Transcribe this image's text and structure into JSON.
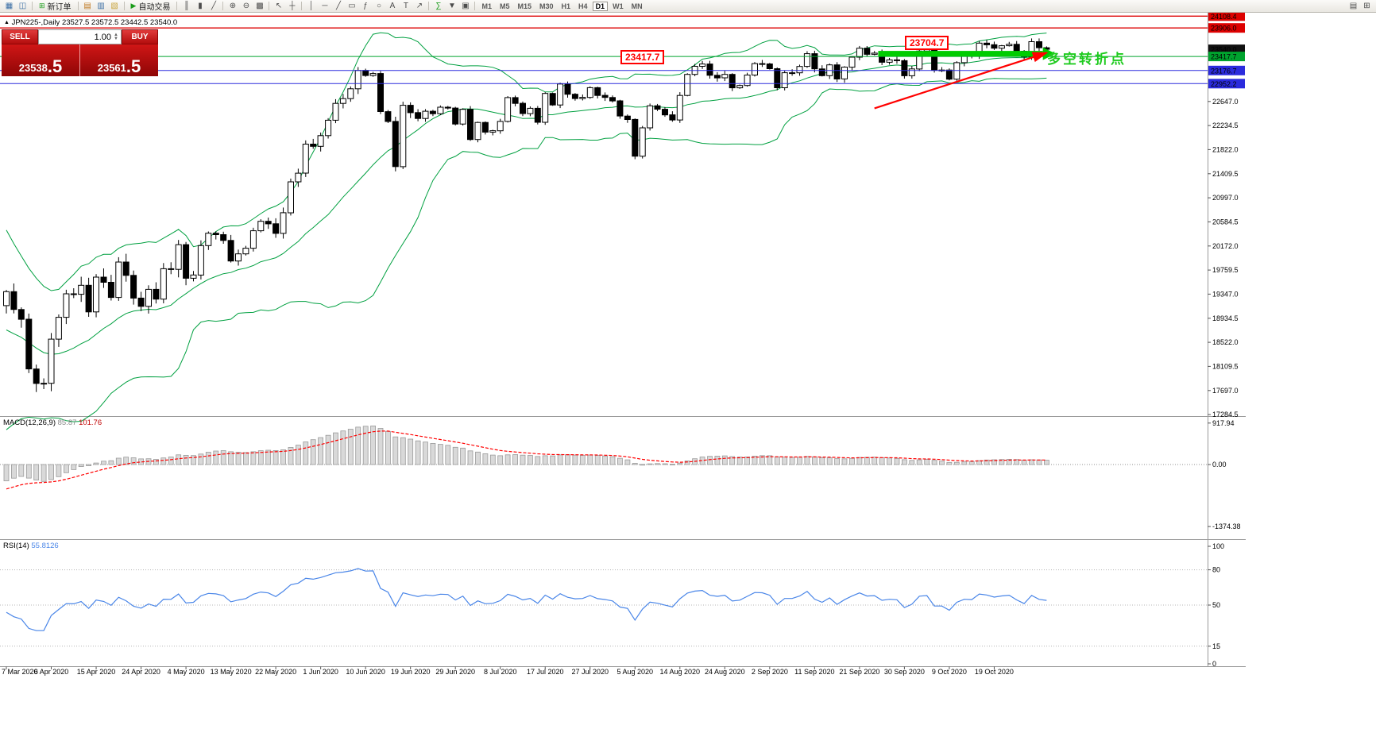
{
  "toolbar": {
    "new_order_label": "新订单",
    "autotrading_label": "自动交易",
    "timeframes": [
      "M1",
      "M5",
      "M15",
      "M30",
      "H1",
      "H4",
      "D1",
      "W1",
      "MN"
    ],
    "active_timeframe": "D1",
    "items": [
      {
        "type": "icon",
        "name": "new-chart-icon",
        "glyph": "▦",
        "color": "#3a6ea5"
      },
      {
        "type": "icon",
        "name": "profiles-icon",
        "glyph": "◫",
        "color": "#3a6ea5"
      },
      {
        "type": "sep"
      },
      {
        "type": "button",
        "name": "new-order-button",
        "glyph": "⊞",
        "label": "新订单",
        "color": "#1a9c1a"
      },
      {
        "type": "sep"
      },
      {
        "type": "icon",
        "name": "market-watch-icon",
        "glyph": "▤",
        "color": "#c07820"
      },
      {
        "type": "icon",
        "name": "data-window-icon",
        "glyph": "▥",
        "color": "#3a6ea5"
      },
      {
        "type": "icon",
        "name": "navigator-icon",
        "glyph": "▧",
        "color": "#caa53d"
      },
      {
        "type": "sep"
      },
      {
        "type": "button",
        "name": "auto-trading-button",
        "glyph": "▶",
        "label": "自动交易",
        "color": "#1a9c1a"
      },
      {
        "type": "sep"
      },
      {
        "type": "icon",
        "name": "bar-chart-icon",
        "glyph": "║"
      },
      {
        "type": "icon",
        "name": "candlestick-chart-icon",
        "glyph": "▮"
      },
      {
        "type": "icon",
        "name": "line-chart-icon",
        "glyph": "╱"
      },
      {
        "type": "sep"
      },
      {
        "type": "icon",
        "name": "zoom-in-icon",
        "glyph": "⊕"
      },
      {
        "type": "icon",
        "name": "zoom-out-icon",
        "glyph": "⊖"
      },
      {
        "type": "icon",
        "name": "tile-windows-icon",
        "glyph": "▩"
      },
      {
        "type": "sep"
      },
      {
        "type": "icon",
        "name": "cursor-icon",
        "glyph": "↖"
      },
      {
        "type": "icon",
        "name": "crosshair-icon",
        "glyph": "┼"
      },
      {
        "type": "sep"
      },
      {
        "type": "icon",
        "name": "vertical-line-icon",
        "glyph": "│"
      },
      {
        "type": "icon",
        "name": "horizontal-line-icon",
        "glyph": "─"
      },
      {
        "type": "icon",
        "name": "trendline-icon",
        "glyph": "╱"
      },
      {
        "type": "icon",
        "name": "channel-icon",
        "glyph": "▭"
      },
      {
        "type": "icon",
        "name": "fibonacci-icon",
        "glyph": "ƒ"
      },
      {
        "type": "icon",
        "name": "ellipse-icon",
        "glyph": "○"
      },
      {
        "type": "icon",
        "name": "text-icon",
        "glyph": "A"
      },
      {
        "type": "icon",
        "name": "text-label-icon",
        "glyph": "T"
      },
      {
        "type": "icon",
        "name": "arrows-icon",
        "glyph": "↗"
      },
      {
        "type": "sep"
      },
      {
        "type": "icon",
        "name": "indicators-icon",
        "glyph": "∑",
        "color": "#1a9c1a"
      },
      {
        "type": "icon",
        "name": "periods-icon",
        "glyph": "▼"
      },
      {
        "type": "icon",
        "name": "templates-icon",
        "glyph": "▣"
      },
      {
        "type": "sep"
      },
      {
        "type": "timeframes"
      },
      {
        "type": "spacer"
      },
      {
        "type": "icon",
        "name": "docking-icon",
        "glyph": "▤"
      },
      {
        "type": "icon",
        "name": "arrange-icon",
        "glyph": "⊞"
      }
    ]
  },
  "chart": {
    "caption_symbol": "JPN225-,Daily",
    "caption_ohlc": "23527.5 23572.5 23442.5 23540.0"
  },
  "trade_panel": {
    "sell_label": "SELL",
    "buy_label": "BUY",
    "volume": "1.00",
    "sell_price_main": "23538",
    "sell_price_frac": ".5",
    "buy_price_main": "23561",
    "buy_price_frac": ".5"
  },
  "indicators": {
    "macd_label": "MACD(12,26,9)",
    "macd_value": "85.87",
    "macd_signal_value": "101.76",
    "rsi_label": "RSI(14)",
    "rsi_value": "55.8126"
  },
  "annotations": {
    "level_box_1": "23417.7",
    "level_box_2": "23704.7",
    "note_text": "多空转折点"
  },
  "chart_data": {
    "type": "candlestick",
    "symbol": "JPN225-",
    "timeframe": "Daily",
    "x_labels": [
      "7 Mar 2020",
      "6 Apr 2020",
      "15 Apr 2020",
      "24 Apr 2020",
      "4 May 2020",
      "13 May 2020",
      "22 May 2020",
      "1 Jun 2020",
      "10 Jun 2020",
      "19 Jun 2020",
      "29 Jun 2020",
      "8 Jul 2020",
      "17 Jul 2020",
      "27 Jul 2020",
      "5 Aug 2020",
      "14 Aug 2020",
      "24 Aug 2020",
      "2 Sep 2020",
      "11 Sep 2020",
      "21 Sep 2020",
      "30 Sep 2020",
      "9 Oct 2020",
      "19 Oct 2020"
    ],
    "x_label_candle_step": 6,
    "pre_closes": [
      20600,
      20400,
      20150,
      19900,
      19650,
      19400,
      19100,
      18800,
      18500,
      18250,
      18000,
      17800,
      17650,
      17550,
      17700,
      17900,
      18150,
      18450,
      18800,
      19150
    ],
    "closes": [
      19389,
      19084,
      18917,
      18065,
      17818,
      17820,
      18576,
      18950,
      19353,
      19345,
      19499,
      19043,
      19638,
      19550,
      19290,
      19897,
      19669,
      19280,
      19138,
      19429,
      19262,
      19783,
      19771,
      20194,
      19619,
      19675,
      20179,
      20391,
      20366,
      20267,
      19915,
      20037,
      20134,
      20433,
      20595,
      20552,
      20388,
      20741,
      21271,
      21419,
      21916,
      21878,
      22062,
      22326,
      22614,
      22696,
      22864,
      23178,
      23091,
      23125,
      22473,
      22305,
      21531,
      22582,
      22456,
      22355,
      22479,
      22437,
      22549,
      22534,
      22260,
      22512,
      21995,
      22288,
      22122,
      22146,
      22306,
      22714,
      22615,
      22439,
      22530,
      22291,
      22784,
      22587,
      22946,
      22770,
      22696,
      22717,
      22884,
      22751,
      22715,
      22657,
      22397,
      22339,
      21710,
      22195,
      22573,
      22514,
      22418,
      22330,
      22750,
      23110,
      23249,
      23289,
      23096,
      23051,
      23110,
      22880,
      22920,
      23100,
      23296,
      23290,
      23208,
      22882,
      23139,
      23138,
      23247,
      23465,
      23205,
      23089,
      23274,
      23032,
      23235,
      23406,
      23559,
      23454,
      23475,
      23319,
      23360,
      23346,
      23087,
      23204,
      23511,
      23539,
      23185,
      23185,
      23029,
      23312,
      23433,
      23422,
      23647,
      23619,
      23559,
      23601,
      23626,
      23507,
      23410,
      23671,
      23567,
      23540
    ],
    "y_axis_ticks": [
      22647.0,
      22234.5,
      21822.0,
      21409.5,
      20997.0,
      20584.5,
      20172.0,
      19759.5,
      19347.0,
      18934.5,
      18522.0,
      18109.5,
      17697.0,
      17284.5
    ],
    "y_axis_special": [
      {
        "text": "24108.4",
        "bg": "#dd0000"
      },
      {
        "text": "23906.0",
        "bg": "#dd0000"
      },
      {
        "text": "23540.0",
        "bg": "#111111"
      },
      {
        "text": "23417.7",
        "bg": "#00a32e"
      },
      {
        "text": "23176.7",
        "bg": "#2b2bdd"
      },
      {
        "text": "22952.2",
        "bg": "#2b2bdd"
      }
    ],
    "h_lines": [
      {
        "price": 24108.4,
        "color": "#dd0000",
        "w": 1.4
      },
      {
        "price": 23906.0,
        "color": "#dd0000",
        "w": 1.4
      },
      {
        "price": 23417.7,
        "color": "#00a32e",
        "w": 1
      },
      {
        "price": 23176.7,
        "color": "#2b2bdd",
        "w": 1
      },
      {
        "price": 22952.2,
        "color": "#2b2bdd",
        "w": 1
      }
    ],
    "macd_ticks": [
      "917.94",
      "0.00",
      "-1374.38"
    ],
    "rsi_ticks": [
      "100",
      "80",
      "50",
      "15",
      "0"
    ],
    "rsi_levels": [
      80,
      50,
      15
    ],
    "trend_arrow": {
      "from_i": 116,
      "from_p": 22530,
      "to_i": 139,
      "to_p": 23480,
      "color": "#ff0000"
    },
    "green_bar": {
      "from_i": 116.5,
      "to_i": 138.5,
      "price": 23465,
      "color": "#00cc00"
    },
    "colors": {
      "bull": "#ffffff",
      "bear": "#000000",
      "outline": "#000000",
      "bollinger": "#00a040",
      "rsi": "#4a86e8",
      "macd_hist_fill": "#d9d9d9",
      "macd_hist_edge": "#9a9a9a",
      "macd_signal": "#ff0000"
    }
  }
}
